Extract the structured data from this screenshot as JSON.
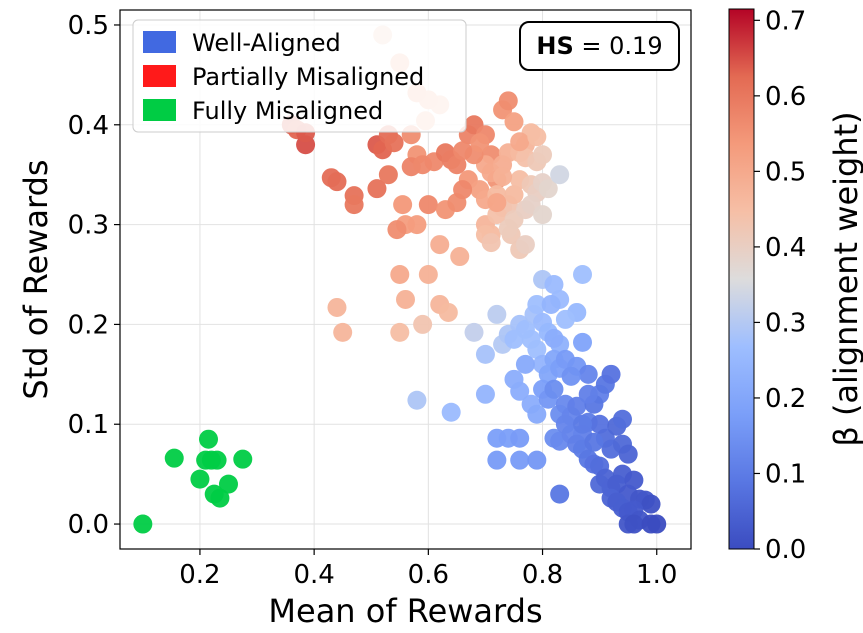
{
  "chart_data": {
    "type": "scatter",
    "xlabel": "Mean of Rewards",
    "ylabel": "Std of Rewards",
    "xlim": [
      0.06,
      1.06
    ],
    "ylim": [
      -0.025,
      0.515
    ],
    "xticks": [
      0.2,
      0.4,
      0.6,
      0.8,
      1.0
    ],
    "xtick_labels": [
      "0.2",
      "0.4",
      "0.6",
      "0.8",
      "1.0"
    ],
    "yticks": [
      0.0,
      0.1,
      0.2,
      0.3,
      0.4,
      0.5
    ],
    "ytick_labels": [
      "0.0",
      "0.1",
      "0.2",
      "0.3",
      "0.4",
      "0.5"
    ],
    "grid": true,
    "annotation": {
      "bold": "HS",
      "rest": " = 0.19",
      "placement": "top-right"
    },
    "legend": {
      "placement": "top-left",
      "entries": [
        {
          "label": "Well-Aligned",
          "color": "#4169e1"
        },
        {
          "label": "Partially Misaligned",
          "color": "#ff1a1a"
        },
        {
          "label": "Fully Misaligned",
          "color": "#00cc44"
        }
      ]
    },
    "colorbar": {
      "label": "β (alignment weight)",
      "cmap": "coolwarm",
      "range": [
        0.0,
        0.715
      ],
      "ticks": [
        0.0,
        0.1,
        0.2,
        0.3,
        0.4,
        0.5,
        0.6,
        0.7
      ],
      "tick_labels": [
        "0.0",
        "0.1",
        "0.2",
        "0.3",
        "0.4",
        "0.5",
        "0.6",
        "0.7"
      ]
    },
    "series": [
      {
        "name": "Fully Misaligned",
        "color": "#00cc44",
        "points": [
          [
            0.1,
            0.0
          ],
          [
            0.155,
            0.066
          ],
          [
            0.2,
            0.045
          ],
          [
            0.21,
            0.064
          ],
          [
            0.215,
            0.085
          ],
          [
            0.22,
            0.064
          ],
          [
            0.225,
            0.03
          ],
          [
            0.23,
            0.064
          ],
          [
            0.235,
            0.026
          ],
          [
            0.25,
            0.04
          ],
          [
            0.275,
            0.065
          ]
        ]
      },
      {
        "name": "Partially Misaligned",
        "points": [
          [
            0.52,
            0.49,
            0.43
          ],
          [
            0.55,
            0.462,
            0.48
          ],
          [
            0.58,
            0.432,
            0.5
          ],
          [
            0.6,
            0.425,
            0.48
          ],
          [
            0.62,
            0.42,
            0.47
          ],
          [
            0.595,
            0.404,
            0.47
          ],
          [
            0.36,
            0.4,
            0.64
          ],
          [
            0.37,
            0.395,
            0.63
          ],
          [
            0.385,
            0.38,
            0.65
          ],
          [
            0.385,
            0.392,
            0.64
          ],
          [
            0.51,
            0.38,
            0.64
          ],
          [
            0.52,
            0.375,
            0.63
          ],
          [
            0.53,
            0.39,
            0.62
          ],
          [
            0.54,
            0.382,
            0.61
          ],
          [
            0.57,
            0.39,
            0.56
          ],
          [
            0.58,
            0.37,
            0.55
          ],
          [
            0.43,
            0.347,
            0.62
          ],
          [
            0.44,
            0.343,
            0.62
          ],
          [
            0.47,
            0.329,
            0.61
          ],
          [
            0.47,
            0.32,
            0.6
          ],
          [
            0.51,
            0.336,
            0.61
          ],
          [
            0.53,
            0.35,
            0.6
          ],
          [
            0.57,
            0.358,
            0.58
          ],
          [
            0.59,
            0.36,
            0.57
          ],
          [
            0.61,
            0.363,
            0.57
          ],
          [
            0.63,
            0.372,
            0.6
          ],
          [
            0.64,
            0.365,
            0.59
          ],
          [
            0.65,
            0.36,
            0.58
          ],
          [
            0.67,
            0.39,
            0.58
          ],
          [
            0.68,
            0.4,
            0.6
          ],
          [
            0.7,
            0.39,
            0.57
          ],
          [
            0.71,
            0.37,
            0.56
          ],
          [
            0.72,
            0.345,
            0.55
          ],
          [
            0.73,
            0.415,
            0.55
          ],
          [
            0.74,
            0.424,
            0.56
          ],
          [
            0.75,
            0.403,
            0.52
          ],
          [
            0.77,
            0.38,
            0.47
          ],
          [
            0.78,
            0.392,
            0.46
          ],
          [
            0.67,
            0.345,
            0.54
          ],
          [
            0.69,
            0.335,
            0.52
          ],
          [
            0.7,
            0.36,
            0.5
          ],
          [
            0.71,
            0.352,
            0.5
          ],
          [
            0.73,
            0.36,
            0.49
          ],
          [
            0.74,
            0.372,
            0.48
          ],
          [
            0.76,
            0.372,
            0.46
          ],
          [
            0.77,
            0.367,
            0.44
          ],
          [
            0.79,
            0.363,
            0.42
          ],
          [
            0.8,
            0.37,
            0.41
          ],
          [
            0.7,
            0.325,
            0.5
          ],
          [
            0.72,
            0.33,
            0.46
          ],
          [
            0.73,
            0.317,
            0.45
          ],
          [
            0.74,
            0.32,
            0.43
          ],
          [
            0.75,
            0.33,
            0.46
          ],
          [
            0.76,
            0.345,
            0.45
          ],
          [
            0.78,
            0.34,
            0.42
          ],
          [
            0.79,
            0.332,
            0.4
          ],
          [
            0.8,
            0.342,
            0.39
          ],
          [
            0.81,
            0.336,
            0.38
          ],
          [
            0.83,
            0.35,
            0.34
          ],
          [
            0.7,
            0.3,
            0.47
          ],
          [
            0.71,
            0.29,
            0.46
          ],
          [
            0.72,
            0.31,
            0.44
          ],
          [
            0.745,
            0.29,
            0.42
          ],
          [
            0.75,
            0.305,
            0.41
          ],
          [
            0.77,
            0.315,
            0.4
          ],
          [
            0.78,
            0.32,
            0.39
          ],
          [
            0.7,
            0.29,
            0.45
          ],
          [
            0.6,
            0.32,
            0.57
          ],
          [
            0.63,
            0.315,
            0.55
          ],
          [
            0.65,
            0.322,
            0.56
          ],
          [
            0.66,
            0.335,
            0.57
          ],
          [
            0.555,
            0.32,
            0.54
          ],
          [
            0.56,
            0.3,
            0.53
          ],
          [
            0.58,
            0.3,
            0.53
          ],
          [
            0.545,
            0.295,
            0.56
          ],
          [
            0.55,
            0.25,
            0.5
          ],
          [
            0.56,
            0.225,
            0.48
          ],
          [
            0.6,
            0.25,
            0.48
          ],
          [
            0.62,
            0.28,
            0.49
          ],
          [
            0.655,
            0.268,
            0.48
          ],
          [
            0.62,
            0.22,
            0.47
          ],
          [
            0.635,
            0.212,
            0.46
          ],
          [
            0.44,
            0.217,
            0.47
          ],
          [
            0.45,
            0.192,
            0.47
          ],
          [
            0.55,
            0.192,
            0.45
          ],
          [
            0.59,
            0.2,
            0.43
          ],
          [
            0.76,
            0.275,
            0.42
          ],
          [
            0.71,
            0.282,
            0.43
          ],
          [
            0.72,
            0.322,
            0.51
          ],
          [
            0.68,
            0.37,
            0.56
          ],
          [
            0.69,
            0.382,
            0.55
          ],
          [
            0.73,
            0.348,
            0.48
          ],
          [
            0.66,
            0.374,
            0.57
          ],
          [
            0.76,
            0.383,
            0.5
          ],
          [
            0.79,
            0.388,
            0.45
          ],
          [
            0.74,
            0.296,
            0.41
          ],
          [
            0.77,
            0.28,
            0.4
          ],
          [
            0.8,
            0.31,
            0.38
          ]
        ]
      },
      {
        "name": "Well-Aligned",
        "points": [
          [
            0.8,
            0.245,
            0.29
          ],
          [
            0.87,
            0.25,
            0.27
          ],
          [
            0.82,
            0.24,
            0.26
          ],
          [
            0.83,
            0.225,
            0.26
          ],
          [
            0.86,
            0.212,
            0.25
          ],
          [
            0.84,
            0.205,
            0.27
          ],
          [
            0.72,
            0.21,
            0.31
          ],
          [
            0.73,
            0.18,
            0.3
          ],
          [
            0.68,
            0.192,
            0.32
          ],
          [
            0.7,
            0.17,
            0.28
          ],
          [
            0.74,
            0.19,
            0.29
          ],
          [
            0.76,
            0.2,
            0.28
          ],
          [
            0.77,
            0.195,
            0.27
          ],
          [
            0.78,
            0.185,
            0.27
          ],
          [
            0.785,
            0.21,
            0.28
          ],
          [
            0.79,
            0.22,
            0.27
          ],
          [
            0.8,
            0.202,
            0.26
          ],
          [
            0.81,
            0.192,
            0.25
          ],
          [
            0.815,
            0.22,
            0.24
          ],
          [
            0.83,
            0.18,
            0.23
          ],
          [
            0.75,
            0.185,
            0.27
          ],
          [
            0.79,
            0.175,
            0.27
          ],
          [
            0.8,
            0.16,
            0.24
          ],
          [
            0.81,
            0.15,
            0.2
          ],
          [
            0.82,
            0.165,
            0.2
          ],
          [
            0.83,
            0.156,
            0.18
          ],
          [
            0.84,
            0.165,
            0.17
          ],
          [
            0.87,
            0.182,
            0.19
          ],
          [
            0.86,
            0.158,
            0.16
          ],
          [
            0.88,
            0.15,
            0.12
          ],
          [
            0.9,
            0.13,
            0.11
          ],
          [
            0.91,
            0.14,
            0.09
          ],
          [
            0.92,
            0.15,
            0.08
          ],
          [
            0.76,
            0.133,
            0.22
          ],
          [
            0.78,
            0.12,
            0.22
          ],
          [
            0.79,
            0.11,
            0.21
          ],
          [
            0.8,
            0.135,
            0.18
          ],
          [
            0.81,
            0.125,
            0.16
          ],
          [
            0.82,
            0.135,
            0.14
          ],
          [
            0.83,
            0.11,
            0.14
          ],
          [
            0.84,
            0.12,
            0.13
          ],
          [
            0.85,
            0.108,
            0.12
          ],
          [
            0.86,
            0.118,
            0.11
          ],
          [
            0.87,
            0.09,
            0.11
          ],
          [
            0.88,
            0.102,
            0.1
          ],
          [
            0.89,
            0.12,
            0.09
          ],
          [
            0.9,
            0.1,
            0.08
          ],
          [
            0.91,
            0.086,
            0.07
          ],
          [
            0.92,
            0.075,
            0.07
          ],
          [
            0.93,
            0.098,
            0.06
          ],
          [
            0.94,
            0.08,
            0.06
          ],
          [
            0.95,
            0.07,
            0.05
          ],
          [
            0.82,
            0.086,
            0.14
          ],
          [
            0.83,
            0.083,
            0.13
          ],
          [
            0.84,
            0.1,
            0.12
          ],
          [
            0.85,
            0.09,
            0.12
          ],
          [
            0.86,
            0.08,
            0.11
          ],
          [
            0.87,
            0.075,
            0.1
          ],
          [
            0.88,
            0.065,
            0.09
          ],
          [
            0.89,
            0.06,
            0.08
          ],
          [
            0.9,
            0.058,
            0.07
          ],
          [
            0.9,
            0.04,
            0.06
          ],
          [
            0.91,
            0.046,
            0.05
          ],
          [
            0.92,
            0.036,
            0.05
          ],
          [
            0.93,
            0.04,
            0.04
          ],
          [
            0.94,
            0.05,
            0.04
          ],
          [
            0.95,
            0.03,
            0.03
          ],
          [
            0.96,
            0.044,
            0.03
          ],
          [
            0.97,
            0.025,
            0.02
          ],
          [
            0.98,
            0.024,
            0.02
          ],
          [
            0.99,
            0.02,
            0.01
          ],
          [
            0.92,
            0.026,
            0.05
          ],
          [
            0.93,
            0.022,
            0.04
          ],
          [
            0.94,
            0.016,
            0.04
          ],
          [
            0.95,
            0.012,
            0.03
          ],
          [
            0.96,
            0.014,
            0.03
          ],
          [
            0.97,
            0.004,
            0.02
          ],
          [
            0.95,
            0.0,
            0.02
          ],
          [
            0.96,
            0.0,
            0.01
          ],
          [
            0.99,
            0.0,
            0.0
          ],
          [
            1.0,
            0.0,
            0.0
          ],
          [
            0.72,
            0.086,
            0.18
          ],
          [
            0.74,
            0.086,
            0.18
          ],
          [
            0.76,
            0.086,
            0.17
          ],
          [
            0.72,
            0.064,
            0.17
          ],
          [
            0.76,
            0.064,
            0.17
          ],
          [
            0.79,
            0.064,
            0.16
          ],
          [
            0.83,
            0.03,
            0.09
          ],
          [
            0.58,
            0.124,
            0.29
          ],
          [
            0.64,
            0.112,
            0.26
          ],
          [
            0.7,
            0.13,
            0.24
          ],
          [
            0.87,
            0.1,
            0.1
          ],
          [
            0.89,
            0.082,
            0.09
          ],
          [
            0.88,
            0.13,
            0.11
          ],
          [
            0.85,
            0.148,
            0.15
          ],
          [
            0.82,
            0.186,
            0.22
          ],
          [
            0.77,
            0.16,
            0.21
          ],
          [
            0.75,
            0.145,
            0.22
          ],
          [
            0.94,
            0.105,
            0.07
          ]
        ]
      }
    ]
  }
}
